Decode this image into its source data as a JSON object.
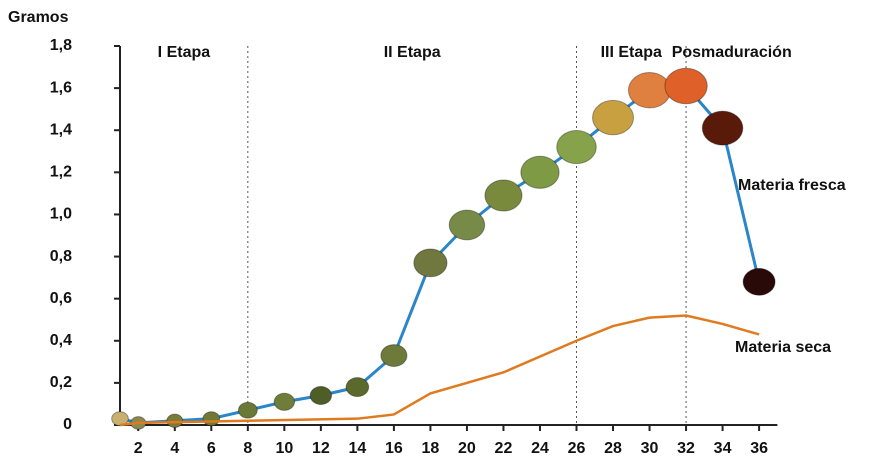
{
  "chart_data": {
    "type": "line",
    "y_label": "Gramos",
    "xlim": [
      1,
      37
    ],
    "ylim": [
      0,
      1.8
    ],
    "xticks": [
      2,
      4,
      6,
      8,
      10,
      12,
      14,
      16,
      18,
      20,
      22,
      24,
      26,
      28,
      30,
      32,
      34,
      36
    ],
    "yticks": [
      0,
      {
        "value": 0.2,
        "label": "0,2"
      },
      {
        "value": 0.4,
        "label": "0,4"
      },
      {
        "value": 0.6,
        "label": "0,6"
      },
      {
        "value": 0.8,
        "label": "0,8"
      },
      {
        "value": 1.0,
        "label": "1,0"
      },
      {
        "value": 1.2,
        "label": "1,2"
      },
      {
        "value": 1.4,
        "label": "1,4"
      },
      {
        "value": 1.6,
        "label": "1,6"
      },
      {
        "value": 1.8,
        "label": "1,8"
      }
    ],
    "stages": [
      "I Etapa",
      "II Etapa",
      "III Etapa",
      "Posmaduración"
    ],
    "dividers": [
      8,
      26,
      32
    ],
    "series": [
      {
        "name": "Materia fresca",
        "color": "#2a86c8",
        "x": [
          1,
          2,
          4,
          6,
          8,
          10,
          12,
          14,
          16,
          18,
          20,
          22,
          24,
          26,
          28,
          30,
          32,
          34,
          36
        ],
        "values": [
          0.03,
          0.01,
          0.02,
          0.03,
          0.07,
          0.11,
          0.14,
          0.18,
          0.33,
          0.77,
          0.95,
          1.09,
          1.2,
          1.32,
          1.46,
          1.59,
          1.61,
          1.41,
          0.68
        ],
        "marker_colors": [
          "#c8b070",
          "#8a8a50",
          "#7a7a3a",
          "#707a38",
          "#6a7a36",
          "#6f7d3a",
          "#4f5e26",
          "#5b6a2c",
          "#6e7a3a",
          "#707840",
          "#788a48",
          "#7a8a3c",
          "#7e9a44",
          "#86a24a",
          "#c8a040",
          "#e08040",
          "#e0602a",
          "#5a1a0a",
          "#2a0a08"
        ]
      },
      {
        "name": "Materia seca",
        "color": "#e07a1e",
        "x": [
          1,
          2,
          8,
          14,
          16,
          18,
          22,
          26,
          28,
          30,
          32,
          34,
          36
        ],
        "values": [
          0,
          0.01,
          0.02,
          0.03,
          0.05,
          0.15,
          0.25,
          0.4,
          0.47,
          0.51,
          0.52,
          0.48,
          0.43
        ]
      }
    ]
  }
}
